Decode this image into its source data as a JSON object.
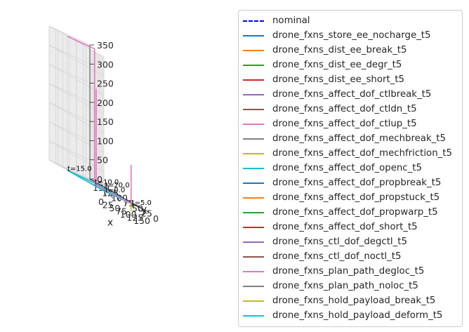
{
  "chart_data": {
    "type": "line3d",
    "xlabel": "x",
    "ylabel": "y",
    "zlabel": "",
    "xlim": [
      0,
      150
    ],
    "ylim": [
      0,
      150
    ],
    "zlim": [
      0,
      350
    ],
    "x_ticks": [
      "0",
      "25",
      "50",
      "75",
      "100",
      "125",
      "150"
    ],
    "y_ticks": [
      "0",
      "25",
      "50",
      "75",
      "100",
      "125",
      "150"
    ],
    "z_ticks": [
      "0",
      "50",
      "100",
      "150",
      "200",
      "250",
      "300",
      "350"
    ],
    "legend": [
      {
        "name": "nominal",
        "color": "#0000ff",
        "style": "dashed"
      },
      {
        "name": "drone_fxns_store_ee_nocharge_t5",
        "color": "#1f77b4",
        "style": "solid"
      },
      {
        "name": "drone_fxns_dist_ee_break_t5",
        "color": "#ff7f0e",
        "style": "solid"
      },
      {
        "name": "drone_fxns_dist_ee_degr_t5",
        "color": "#2ca02c",
        "style": "solid"
      },
      {
        "name": "drone_fxns_dist_ee_short_t5",
        "color": "#d62728",
        "style": "solid"
      },
      {
        "name": "drone_fxns_affect_dof_ctlbreak_t5",
        "color": "#9467bd",
        "style": "solid"
      },
      {
        "name": "drone_fxns_affect_dof_ctldn_t5",
        "color": "#8c564b",
        "style": "solid"
      },
      {
        "name": "drone_fxns_affect_dof_ctlup_t5",
        "color": "#e377c2",
        "style": "solid"
      },
      {
        "name": "drone_fxns_affect_dof_mechbreak_t5",
        "color": "#7f7f7f",
        "style": "solid"
      },
      {
        "name": "drone_fxns_affect_dof_mechfriction_t5",
        "color": "#bcbd22",
        "style": "solid"
      },
      {
        "name": "drone_fxns_affect_dof_openc_t5",
        "color": "#17becf",
        "style": "solid"
      },
      {
        "name": "drone_fxns_affect_dof_propbreak_t5",
        "color": "#1f77b4",
        "style": "solid"
      },
      {
        "name": "drone_fxns_affect_dof_propstuck_t5",
        "color": "#ff7f0e",
        "style": "solid"
      },
      {
        "name": "drone_fxns_affect_dof_propwarp_t5",
        "color": "#2ca02c",
        "style": "solid"
      },
      {
        "name": "drone_fxns_affect_dof_short_t5",
        "color": "#d62728",
        "style": "solid"
      },
      {
        "name": "drone_fxns_ctl_dof_degctl_t5",
        "color": "#9467bd",
        "style": "solid"
      },
      {
        "name": "drone_fxns_ctl_dof_noctl_t5",
        "color": "#8c564b",
        "style": "solid"
      },
      {
        "name": "drone_fxns_plan_path_degloc_t5",
        "color": "#e377c2",
        "style": "solid"
      },
      {
        "name": "drone_fxns_plan_path_noloc_t5",
        "color": "#7f7f7f",
        "style": "solid"
      },
      {
        "name": "drone_fxns_hold_payload_break_t5",
        "color": "#bcbd22",
        "style": "solid"
      },
      {
        "name": "drone_fxns_hold_payload_deform_t5",
        "color": "#17becf",
        "style": "solid"
      }
    ],
    "series": [
      {
        "name": "drone_fxns_hold_payload_deform_t5",
        "color": "#17becf",
        "points": [
          [
            0,
            0,
            0
          ],
          [
            100,
            0,
            0
          ],
          [
            100,
            100,
            0
          ],
          [
            0,
            100,
            0
          ],
          [
            0,
            0,
            0
          ]
        ]
      },
      {
        "name": "drone_fxns_affect_dof_ctlup_t5",
        "color": "#e377c2",
        "points": [
          [
            100,
            0,
            0
          ],
          [
            100,
            0,
            100
          ],
          [
            100,
            0,
            0
          ],
          [
            55,
            62,
            0
          ],
          [
            55,
            62,
            250
          ],
          [
            55,
            62,
            0
          ],
          [
            100,
            100,
            0
          ],
          [
            100,
            100,
            350
          ],
          [
            0,
            100,
            350
          ]
        ]
      },
      {
        "name": "drone_fxns_hold_payload_break_t5",
        "color": "#bcbd22",
        "points": [
          [
            100,
            0,
            0
          ],
          [
            100,
            0,
            -20
          ]
        ]
      }
    ],
    "annotations": [
      {
        "text": "t=5.0",
        "at": [
          100,
          0,
          0
        ]
      },
      {
        "text": "t=10.0",
        "at": [
          100,
          100,
          0
        ]
      },
      {
        "text": "t=15.0",
        "at": [
          0,
          100,
          0
        ]
      },
      {
        "text": "t=20.0",
        "at": [
          0,
          0,
          0
        ]
      },
      {
        "text": "t=0.0",
        "at": [
          0,
          0,
          0
        ]
      }
    ]
  }
}
